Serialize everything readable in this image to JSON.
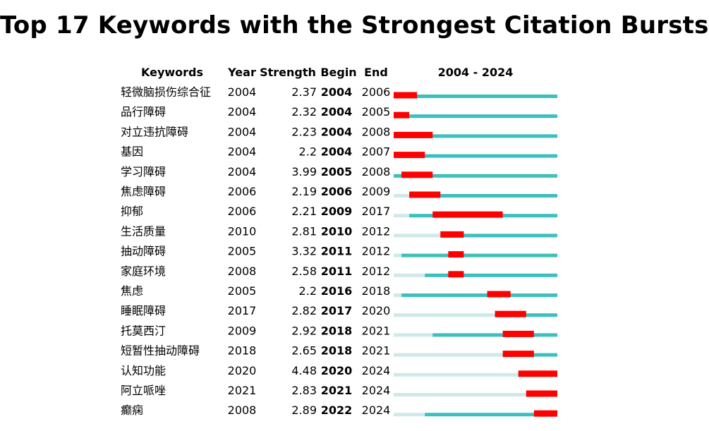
{
  "chart_data": {
    "type": "table",
    "title": "Top 17 Keywords with the Strongest Citation Bursts",
    "columns": [
      "Keywords",
      "Year",
      "Strength",
      "Begin",
      "End",
      "2004 - 2024"
    ],
    "range": [
      2004,
      2024
    ],
    "colors": {
      "burst": "#ff0000",
      "active": "#3cbfbf",
      "inactive": "#cfe9ea"
    },
    "rows": [
      {
        "keyword": "轻微脑损伤综合征",
        "year": "2004",
        "strength": "2.37",
        "begin": "2004",
        "end": "2006"
      },
      {
        "keyword": "品行障碍",
        "year": "2004",
        "strength": "2.32",
        "begin": "2004",
        "end": "2005"
      },
      {
        "keyword": "对立违抗障碍",
        "year": "2004",
        "strength": "2.23",
        "begin": "2004",
        "end": "2008"
      },
      {
        "keyword": "基因",
        "year": "2004",
        "strength": "2.2",
        "begin": "2004",
        "end": "2007"
      },
      {
        "keyword": "学习障碍",
        "year": "2004",
        "strength": "3.99",
        "begin": "2005",
        "end": "2008"
      },
      {
        "keyword": "焦虑障碍",
        "year": "2006",
        "strength": "2.19",
        "begin": "2006",
        "end": "2009"
      },
      {
        "keyword": "抑郁",
        "year": "2006",
        "strength": "2.21",
        "begin": "2009",
        "end": "2017"
      },
      {
        "keyword": "生活质量",
        "year": "2010",
        "strength": "2.81",
        "begin": "2010",
        "end": "2012"
      },
      {
        "keyword": "抽动障碍",
        "year": "2005",
        "strength": "3.32",
        "begin": "2011",
        "end": "2012"
      },
      {
        "keyword": "家庭环境",
        "year": "2008",
        "strength": "2.58",
        "begin": "2011",
        "end": "2012"
      },
      {
        "keyword": "焦虑",
        "year": "2005",
        "strength": "2.2",
        "begin": "2016",
        "end": "2018"
      },
      {
        "keyword": "睡眠障碍",
        "year": "2017",
        "strength": "2.82",
        "begin": "2017",
        "end": "2020"
      },
      {
        "keyword": "托莫西汀",
        "year": "2009",
        "strength": "2.92",
        "begin": "2018",
        "end": "2021"
      },
      {
        "keyword": "短暂性抽动障碍",
        "year": "2018",
        "strength": "2.65",
        "begin": "2018",
        "end": "2021"
      },
      {
        "keyword": "认知功能",
        "year": "2020",
        "strength": "4.48",
        "begin": "2020",
        "end": "2024"
      },
      {
        "keyword": "阿立哌唑",
        "year": "2021",
        "strength": "2.83",
        "begin": "2021",
        "end": "2024"
      },
      {
        "keyword": "癫痫",
        "year": "2008",
        "strength": "2.89",
        "begin": "2022",
        "end": "2024"
      }
    ]
  }
}
